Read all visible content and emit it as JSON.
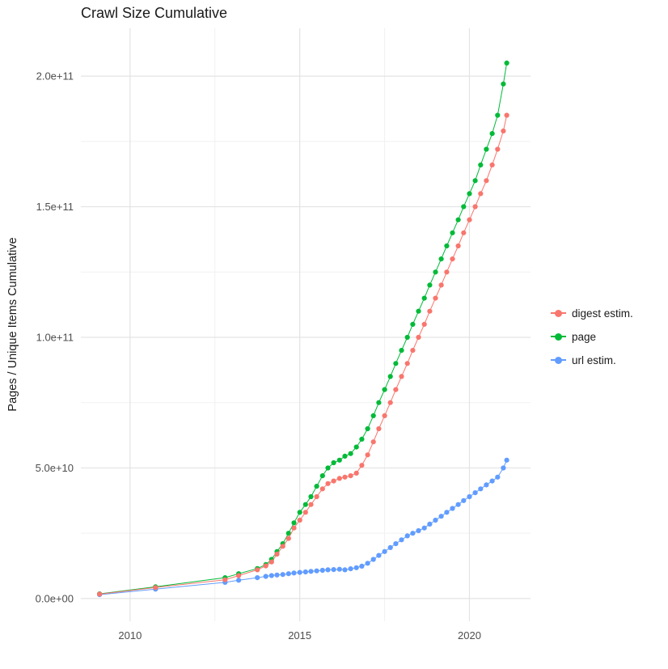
{
  "title": "Crawl Size Cumulative",
  "colors": {
    "background": "#ffffff",
    "grid_major": "#e3e3e3",
    "grid_minor": "#f1f1f1",
    "axis_text": "#4d4d4d",
    "title_text": "#1a1a1a"
  },
  "legend": {
    "items": [
      {
        "label": "digest estim.",
        "color": "#F8766D"
      },
      {
        "label": "page",
        "color": "#00BA38"
      },
      {
        "label": "url estim.",
        "color": "#619CFF"
      }
    ]
  },
  "chart_data": {
    "type": "scatter",
    "title": "Crawl Size Cumulative",
    "xlabel": "",
    "ylabel": "Pages / Unique Items Cumulative",
    "xlim": [
      2008.55,
      2021.8
    ],
    "ylim": [
      -8700000000.0,
      218300000000.0
    ],
    "grid": true,
    "legend_position": "right",
    "x_ticks": [
      2010,
      2015,
      2020
    ],
    "x_tick_labels": [
      "2010",
      "2015",
      "2020"
    ],
    "x_minor_ticks": [
      2012.5,
      2017.5
    ],
    "y_ticks": [
      0,
      50000000000.0,
      100000000000.0,
      150000000000.0,
      200000000000.0
    ],
    "y_tick_labels": [
      "0.0e+00",
      "5.0e+10",
      "1.0e+11",
      "1.5e+11",
      "2.0e+11"
    ],
    "y_minor_ticks": [
      25000000000.0,
      75000000000.0,
      125000000000.0,
      175000000000.0
    ],
    "x": [
      2009.1,
      2010.75,
      2012.8,
      2013.2,
      2013.75,
      2014.0,
      2014.17,
      2014.33,
      2014.5,
      2014.67,
      2014.83,
      2015.0,
      2015.17,
      2015.33,
      2015.5,
      2015.67,
      2015.83,
      2016.0,
      2016.17,
      2016.33,
      2016.5,
      2016.67,
      2016.83,
      2017.0,
      2017.17,
      2017.33,
      2017.5,
      2017.67,
      2017.83,
      2018.0,
      2018.17,
      2018.33,
      2018.5,
      2018.67,
      2018.83,
      2019.0,
      2019.17,
      2019.33,
      2019.5,
      2019.67,
      2019.83,
      2020.0,
      2020.17,
      2020.33,
      2020.5,
      2020.67,
      2020.83,
      2021.0,
      2021.1
    ],
    "series": [
      {
        "name": "digest estim.",
        "color": "#F8766D",
        "values": [
          1700000000.0,
          4200000000.0,
          7200000000.0,
          8800000000.0,
          11000000000.0,
          12500000000.0,
          14000000000.0,
          17000000000.0,
          20000000000.0,
          23000000000.0,
          27000000000.0,
          30000000000.0,
          33000000000.0,
          36000000000.0,
          39000000000.0,
          42000000000.0,
          44000000000.0,
          45000000000.0,
          46000000000.0,
          46500000000.0,
          47000000000.0,
          48000000000.0,
          51000000000.0,
          55000000000.0,
          60000000000.0,
          65000000000.0,
          70000000000.0,
          75000000000.0,
          80000000000.0,
          85000000000.0,
          90000000000.0,
          95000000000.0,
          100000000000.0,
          105000000000.0,
          110000000000.0,
          115000000000.0,
          120000000000.0,
          125000000000.0,
          130000000000.0,
          135000000000.0,
          140000000000.0,
          145000000000.0,
          150000000000.0,
          155000000000.0,
          160000000000.0,
          166000000000.0,
          172000000000.0,
          179000000000.0,
          185000000000.0
        ]
      },
      {
        "name": "page",
        "color": "#00BA38",
        "values": [
          1800000000.0,
          4500000000.0,
          8000000000.0,
          9500000000.0,
          11500000000.0,
          13000000000.0,
          15000000000.0,
          18000000000.0,
          21000000000.0,
          25000000000.0,
          29000000000.0,
          33000000000.0,
          36000000000.0,
          39000000000.0,
          43000000000.0,
          47000000000.0,
          50000000000.0,
          52000000000.0,
          53000000000.0,
          54500000000.0,
          55500000000.0,
          58000000000.0,
          61000000000.0,
          65000000000.0,
          70000000000.0,
          75000000000.0,
          80000000000.0,
          85000000000.0,
          90000000000.0,
          95000000000.0,
          100000000000.0,
          105000000000.0,
          110000000000.0,
          115000000000.0,
          120000000000.0,
          125000000000.0,
          130000000000.0,
          135000000000.0,
          140000000000.0,
          145000000000.0,
          150000000000.0,
          155000000000.0,
          160000000000.0,
          166000000000.0,
          172000000000.0,
          178000000000.0,
          185000000000.0,
          197000000000.0,
          205000000000.0
        ]
      },
      {
        "name": "url estim.",
        "color": "#619CFF",
        "values": [
          1500000000.0,
          3600000000.0,
          6200000000.0,
          7000000000.0,
          8000000000.0,
          8500000000.0,
          8800000000.0,
          9000000000.0,
          9200000000.0,
          9500000000.0,
          9800000000.0,
          10000000000.0,
          10200000000.0,
          10400000000.0,
          10600000000.0,
          10800000000.0,
          11000000000.0,
          11100000000.0,
          11200000000.0,
          11000000000.0,
          11400000000.0,
          11800000000.0,
          12400000000.0,
          13500000000.0,
          15000000000.0,
          16500000000.0,
          18000000000.0,
          19500000000.0,
          21000000000.0,
          22500000000.0,
          24000000000.0,
          25000000000.0,
          26000000000.0,
          27000000000.0,
          28500000000.0,
          30000000000.0,
          31500000000.0,
          33000000000.0,
          34500000000.0,
          36000000000.0,
          37500000000.0,
          39000000000.0,
          40500000000.0,
          42000000000.0,
          43500000000.0,
          45000000000.0,
          46500000000.0,
          50000000000.0,
          53000000000.0
        ]
      }
    ]
  }
}
